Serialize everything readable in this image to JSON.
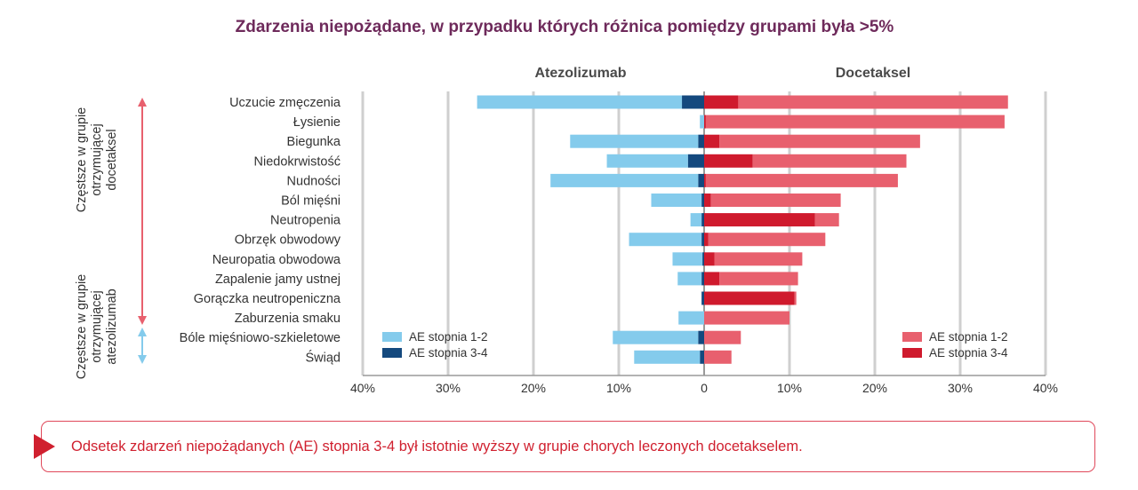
{
  "chart_data": {
    "type": "bar",
    "title": "Zdarzenia niepożądane, w przypadku których różnica pomiędzy grupami była >5%",
    "left_group": "Atezolizumab",
    "right_group": "Docetaksel",
    "categories": [
      "Uczucie zmęczenia",
      "Łysienie",
      "Biegunka",
      "Niedokrwistość",
      "Nudności",
      "Ból mięśni",
      "Neutropenia",
      "Obrzęk obwodowy",
      "Neuropatia obwodowa",
      "Zapalenie jamy ustnej",
      "Gorączka neutropeniczna",
      "Zaburzenia smaku",
      "Bóle mięśniowo-szkieletowe",
      "Świąd"
    ],
    "series": [
      {
        "name": "AE stopnia 1-2",
        "group": "Atezolizumab",
        "values": [
          24.0,
          0.5,
          15.0,
          9.5,
          17.3,
          5.9,
          1.3,
          8.5,
          3.5,
          2.8,
          0.0,
          3.0,
          10.0,
          7.7
        ]
      },
      {
        "name": "AE stopnia 3-4",
        "group": "Atezolizumab",
        "values": [
          2.6,
          0.0,
          0.7,
          1.9,
          0.7,
          0.3,
          0.3,
          0.3,
          0.2,
          0.3,
          0.3,
          0.0,
          0.7,
          0.5
        ]
      },
      {
        "name": "AE stopnia 1-2",
        "group": "Docetaksel",
        "values": [
          31.6,
          35.0,
          23.5,
          18.0,
          22.5,
          15.2,
          2.8,
          13.7,
          10.3,
          9.2,
          0.2,
          10.0,
          4.3,
          3.2
        ]
      },
      {
        "name": "AE stopnia 3-4",
        "group": "Docetaksel",
        "values": [
          4.0,
          0.2,
          1.8,
          5.7,
          0.2,
          0.8,
          13.0,
          0.5,
          1.2,
          1.8,
          10.6,
          0.0,
          0.0,
          0.0
        ]
      }
    ],
    "xticks": [
      "40%",
      "30%",
      "20%",
      "10%",
      "0",
      "10%",
      "20%",
      "30%",
      "40%"
    ],
    "xlim": [
      -40,
      40
    ],
    "group_labels": {
      "upper": [
        "Częstsze w grupie",
        "otrzymującej",
        "docetaksel"
      ],
      "lower": [
        "Częstsze w grupie",
        "otrzymującej",
        "atezolizumab"
      ]
    },
    "legend": {
      "left": [
        {
          "label": "AE stopnia 1-2",
          "color": "#84cbec"
        },
        {
          "label": "AE stopnia 3-4",
          "color": "#14497e"
        }
      ],
      "right": [
        {
          "label": "AE stopnia 1-2",
          "color": "#e8606e"
        },
        {
          "label": "AE stopnia 3-4",
          "color": "#cf1a2d"
        }
      ]
    },
    "colors": {
      "atezo_12": "#84cbec",
      "atezo_34": "#14497e",
      "doce_12": "#e8606e",
      "doce_34": "#cf1a2d",
      "upper_arrow": "#e8606e",
      "lower_arrow": "#84cbec",
      "grid": "#cfcfcf"
    }
  },
  "note": "Odsetek zdarzeń niepożądanych (AE) stopnia 3-4 był istotnie wyższy w grupie chorych leczonych docetakselem."
}
